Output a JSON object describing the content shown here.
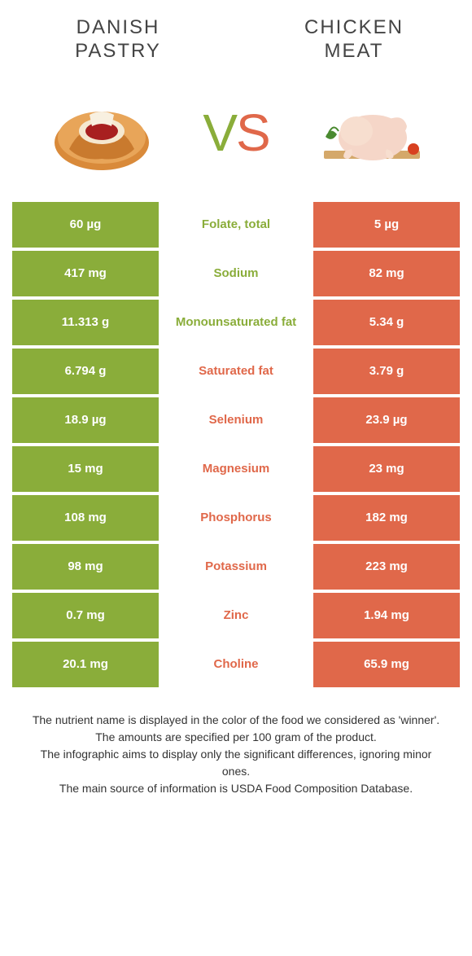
{
  "colors": {
    "left": "#8aad3a",
    "right": "#e0684a",
    "background": "#ffffff",
    "text": "#333333"
  },
  "header": {
    "left_title": "Danish Pastry",
    "right_title": "Chicken Meat",
    "vs_v": "V",
    "vs_s": "S"
  },
  "rows": [
    {
      "left": "60 µg",
      "label": "Folate, total",
      "right": "5 µg",
      "winner": "left"
    },
    {
      "left": "417 mg",
      "label": "Sodium",
      "right": "82 mg",
      "winner": "left"
    },
    {
      "left": "11.313 g",
      "label": "Monounsaturated fat",
      "right": "5.34 g",
      "winner": "left"
    },
    {
      "left": "6.794 g",
      "label": "Saturated fat",
      "right": "3.79 g",
      "winner": "right"
    },
    {
      "left": "18.9 µg",
      "label": "Selenium",
      "right": "23.9 µg",
      "winner": "right"
    },
    {
      "left": "15 mg",
      "label": "Magnesium",
      "right": "23 mg",
      "winner": "right"
    },
    {
      "left": "108 mg",
      "label": "Phosphorus",
      "right": "182 mg",
      "winner": "right"
    },
    {
      "left": "98 mg",
      "label": "Potassium",
      "right": "223 mg",
      "winner": "right"
    },
    {
      "left": "0.7 mg",
      "label": "Zinc",
      "right": "1.94 mg",
      "winner": "right"
    },
    {
      "left": "20.1 mg",
      "label": "Choline",
      "right": "65.9 mg",
      "winner": "right"
    }
  ],
  "footnotes": [
    "The nutrient name is displayed in the color of the food we considered as 'winner'.",
    "The amounts are specified per 100 gram of the product.",
    "The infographic aims to display only the significant differences, ignoring minor ones.",
    "The main source of information is USDA Food Composition Database."
  ]
}
